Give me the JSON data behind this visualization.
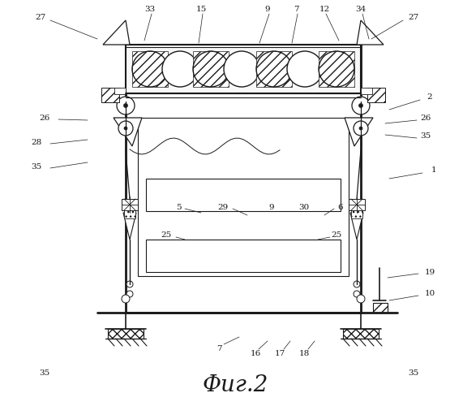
{
  "bg_color": "#ffffff",
  "line_color": "#1a1a1a",
  "title": "Фиг.2",
  "title_fontsize": 20,
  "fig_width": 5.71,
  "fig_height": 5.0,
  "dpi": 100
}
